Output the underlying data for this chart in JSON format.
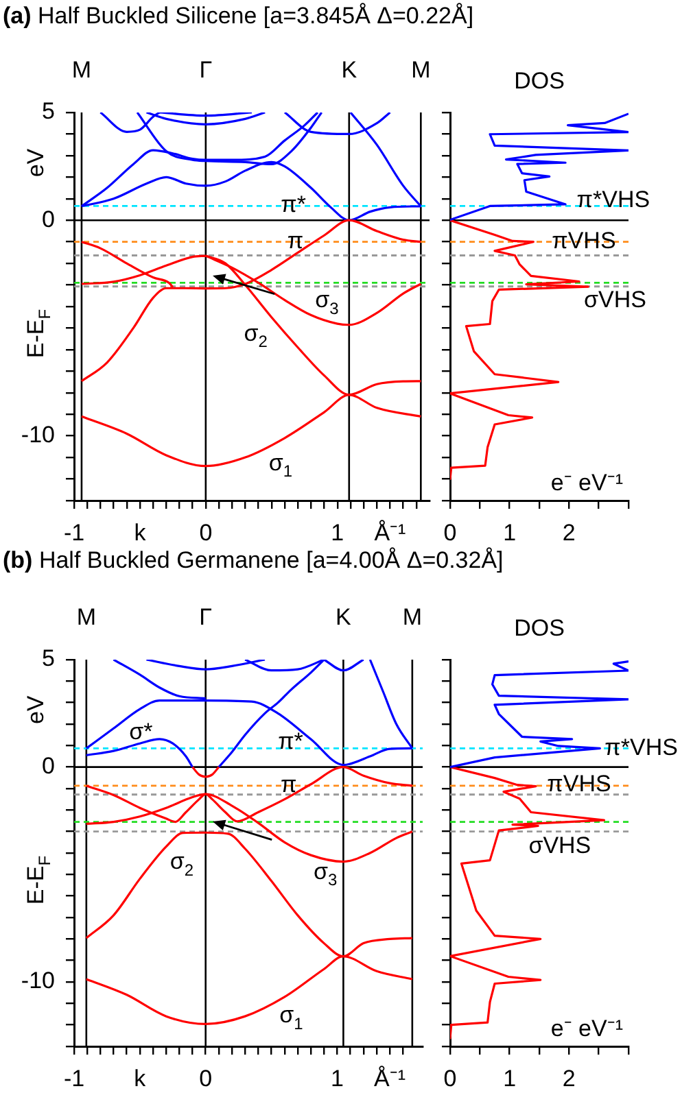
{
  "chart_data": [
    {
      "type": "line",
      "title": "(a) Half Buckled Silicene [a=3.845Å Δ=0.22Å]",
      "ylabel": "E-E$_{F}$",
      "annotations": [
        "eV",
        {
          "text": "π*",
          "x": 0.57,
          "y": 0.7
        },
        {
          "text": "π",
          "x": 0.62,
          "y": -1.0
        },
        "σ$_{3}$",
        "σ$_{2}$",
        "σ$_{1}$"
      ],
      "xlim": [
        -1,
        1.7
      ],
      "xticks": [
        -1,
        {
          "value": -0.9,
          "label": null
        },
        {
          "value": -0.8,
          "label": null
        },
        {
          "value": -0.7,
          "label": null
        },
        {
          "value": -0.6,
          "label": null
        },
        {
          "value": -0.5,
          "label": "k"
        },
        {
          "value": -0.4,
          "label": null
        },
        {
          "value": -0.3,
          "label": null
        },
        {
          "value": -0.2,
          "label": null
        },
        {
          "value": -0.1,
          "label": null
        },
        0,
        {
          "value": 0.1,
          "label": null
        },
        {
          "value": 0.2,
          "label": null
        },
        {
          "value": 0.3,
          "label": null
        },
        {
          "value": 0.4,
          "label": null
        },
        {
          "value": 0.5,
          "label": null
        },
        {
          "value": 0.6,
          "label": null
        },
        {
          "value": 0.7,
          "label": null
        },
        {
          "value": 0.8,
          "label": null
        },
        {
          "value": 0.9,
          "label": null
        },
        1,
        {
          "value": 1.1,
          "label": null
        },
        {
          "value": 1.2,
          "label": null
        },
        {
          "value": 1.3,
          "label": null
        },
        {
          "value": 1.4,
          "label": "Å⁻¹"
        },
        {
          "value": 1.5,
          "label": null
        },
        {
          "value": 1.6,
          "label": null
        }
      ],
      "ylim": [
        -13,
        5
      ],
      "yticks": [
        5,
        {
          "value": 4,
          "label": null
        },
        {
          "value": 3,
          "label": null
        },
        {
          "value": 2,
          "label": null
        },
        {
          "value": 1,
          "label": null
        },
        0,
        {
          "value": -1,
          "label": null
        },
        {
          "value": -2,
          "label": null
        },
        {
          "value": -3,
          "label": null
        },
        {
          "value": -4,
          "label": null
        },
        {
          "value": -5,
          "label": null
        },
        {
          "value": -6,
          "label": null
        },
        {
          "value": -7,
          "label": null
        },
        {
          "value": -8,
          "label": null
        },
        {
          "value": -9,
          "label": null
        },
        -10,
        {
          "value": -11,
          "label": null
        },
        {
          "value": -12,
          "label": null
        },
        {
          "value": -13,
          "label": null
        }
      ],
      "ref_lines": [
        {
          "axis": "x",
          "value": -0.943,
          "color": "#000000",
          "label": "M"
        },
        {
          "axis": "x",
          "value": 0,
          "color": "#000000",
          "label": "Γ"
        },
        {
          "axis": "x",
          "value": 1.089,
          "color": "#000000",
          "label": "K"
        },
        {
          "axis": "x",
          "value": 1.634,
          "color": "#000000",
          "label": "M"
        },
        {
          "axis": "y",
          "value": 0,
          "color": "#000000"
        },
        {
          "axis": "y",
          "value": 0.66,
          "color": "#00e5ff",
          "line_style": "dashed"
        },
        {
          "axis": "y",
          "value": -1.0,
          "color": "#ff8c1a",
          "line_style": "dashed"
        },
        {
          "axis": "y",
          "value": -1.63,
          "color": "#999999",
          "line_style": "dashed"
        },
        {
          "axis": "y",
          "value": -2.9,
          "color": "#22dd22",
          "line_style": "dashed"
        },
        {
          "axis": "y",
          "value": -3.07,
          "color": "#999999",
          "line_style": "dashed"
        }
      ],
      "series": [
        {
          "color": "#ff0000",
          "x": [
            -0.943,
            -0.6,
            -0.3,
            0,
            0.3,
            0.6,
            0.9,
            1.089,
            1.3,
            1.634
          ],
          "values": [
            -9.1,
            -9.9,
            -10.9,
            -11.4,
            -11.0,
            -10.1,
            -8.9,
            -8.1,
            -8.7,
            -9.1
          ]
        },
        {
          "color": "#ff0000",
          "x": [
            -0.943,
            -0.75,
            -0.55,
            -0.4,
            -0.3,
            -0.15,
            0,
            0.15,
            0.3,
            0.5,
            0.7,
            0.9,
            1.089,
            1.3,
            1.5,
            1.634
          ],
          "values": [
            -7.46,
            -6.6,
            -5.0,
            -3.6,
            -3.15,
            -3.15,
            -3.16,
            -3.15,
            -2.95,
            -2.3,
            -1.5,
            -0.7,
            0,
            -0.5,
            -0.9,
            -1.0
          ]
        },
        {
          "color": "#ff0000",
          "x": [
            -0.943,
            -0.8,
            -0.6,
            -0.4,
            -0.28,
            -0.25
          ],
          "values": [
            -1.0,
            -1.3,
            -2.0,
            -2.65,
            -2.9,
            -3.1
          ]
        },
        {
          "color": "#ff0000",
          "x": [
            -0.943,
            -0.7,
            -0.5,
            -0.3,
            -0.1,
            0
          ],
          "values": [
            -2.95,
            -2.85,
            -2.55,
            -2.1,
            -1.7,
            -1.65
          ]
        },
        {
          "color": "#ff0000",
          "x": [
            0,
            0.2,
            0.4,
            0.6,
            0.8,
            1.0,
            1.089,
            1.3,
            1.5,
            1.634
          ],
          "values": [
            -1.65,
            -2.2,
            -2.9,
            -3.7,
            -4.4,
            -4.8,
            -4.85,
            -4.3,
            -3.4,
            -2.95
          ]
        },
        {
          "color": "#ff0000",
          "x": [
            0,
            0.15,
            0.3,
            0.5,
            0.7,
            0.9,
            1.089,
            1.3,
            1.5,
            1.634
          ],
          "values": [
            -1.65,
            -2.0,
            -3.0,
            -4.5,
            -5.9,
            -7.2,
            -8.09,
            -7.6,
            -7.47,
            -7.46
          ]
        },
        {
          "color": "#0000ff",
          "x": [
            -0.943,
            -0.7,
            -0.45,
            -0.3,
            -0.15,
            0,
            0.15,
            0.3,
            0.5,
            0.6,
            0.8,
            0.95,
            1.089,
            1.25,
            1.4,
            1.634
          ],
          "values": [
            0.65,
            1.0,
            1.7,
            2.0,
            1.7,
            1.6,
            1.8,
            2.3,
            2.7,
            2.5,
            1.5,
            0.6,
            0,
            0.4,
            0.6,
            0.65
          ]
        },
        {
          "color": "#0000ff",
          "x": [
            -0.943,
            -0.75,
            -0.55,
            -0.4,
            -0.25,
            -0.1,
            0,
            0.2,
            0.45,
            0.6,
            0.75,
            0.85
          ],
          "values": [
            0.65,
            1.5,
            2.6,
            3.25,
            3.1,
            2.85,
            2.8,
            2.8,
            2.95,
            3.7,
            4.4,
            5.0
          ]
        },
        {
          "color": "#0000ff",
          "x": [
            -0.52,
            -0.3,
            -0.1,
            0,
            0.3,
            0.5,
            0.65,
            0.8,
            0.88
          ],
          "values": [
            5.0,
            3.2,
            2.8,
            2.75,
            2.7,
            2.6,
            3.2,
            4.3,
            5.0
          ]
        },
        {
          "color": "#0000ff",
          "x": [
            -0.45,
            -0.3,
            0,
            0.3,
            0.45
          ],
          "values": [
            5.0,
            4.7,
            4.45,
            4.7,
            5.0
          ]
        },
        {
          "color": "#0000ff",
          "x": [
            -0.35,
            0,
            0.35
          ],
          "values": [
            5.0,
            4.85,
            5.0
          ]
        },
        {
          "color": "#0000ff",
          "x": [
            -0.8,
            -0.6,
            -0.5,
            -0.4,
            -0.35
          ],
          "values": [
            5.0,
            4.1,
            4.2,
            4.8,
            5.0
          ]
        },
        {
          "color": "#0000ff",
          "x": [
            0.6,
            0.8,
            1.089,
            1.3,
            1.4
          ],
          "values": [
            5.0,
            4.1,
            4.0,
            4.5,
            5.0
          ]
        },
        {
          "color": "#0000ff",
          "x": [
            1.1,
            1.3,
            1.5,
            1.634
          ],
          "values": [
            5.0,
            3.5,
            1.6,
            0.65
          ]
        }
      ]
    },
    {
      "type": "line",
      "title": "DOS",
      "xlabel": "e⁻ eV⁻¹",
      "annotations": [
        {
          "text": "π*VHS",
          "x": 2.13,
          "y": 0.91
        },
        {
          "text": "πVHS",
          "x": 1.71,
          "y": -1.0
        },
        "σVHS"
      ],
      "xlim": [
        0,
        3
      ],
      "xticks": [
        0,
        {
          "value": 0.5,
          "label": null
        },
        1,
        {
          "value": 1.5,
          "label": null
        },
        2,
        {
          "value": 2.5,
          "label": null
        },
        {
          "value": 3,
          "label": null
        }
      ],
      "ylim": [
        -13,
        5
      ],
      "yticks": [
        {
          "value": 5,
          "label": null
        },
        {
          "value": 4,
          "label": null
        },
        {
          "value": 3,
          "label": null
        },
        {
          "value": 2,
          "label": null
        },
        {
          "value": 1,
          "label": null
        },
        {
          "value": 0,
          "label": null
        },
        {
          "value": -1,
          "label": null
        },
        {
          "value": -2,
          "label": null
        },
        {
          "value": -3,
          "label": null
        },
        {
          "value": -4,
          "label": null
        },
        {
          "value": -5,
          "label": null
        },
        {
          "value": -6,
          "label": null
        },
        {
          "value": -7,
          "label": null
        },
        {
          "value": -8,
          "label": null
        },
        {
          "value": -9,
          "label": null
        },
        {
          "value": -10,
          "label": null
        },
        {
          "value": -11,
          "label": null
        },
        {
          "value": -12,
          "label": null
        },
        {
          "value": -13,
          "label": null
        }
      ],
      "tick_labels": "x",
      "ref_lines": [
        {
          "axis": "y",
          "value": 0,
          "color": "#000000"
        },
        {
          "axis": "y",
          "value": 0.66,
          "color": "#00e5ff",
          "line_style": "dashed"
        },
        {
          "axis": "y",
          "value": -1.0,
          "color": "#ff8c1a",
          "line_style": "dashed"
        },
        {
          "axis": "y",
          "value": -1.63,
          "color": "#999999",
          "line_style": "dashed"
        },
        {
          "axis": "y",
          "value": -2.9,
          "color": "#22dd22",
          "line_style": "dashed"
        },
        {
          "axis": "y",
          "value": -3.07,
          "color": "#999999",
          "line_style": "dashed"
        }
      ],
      "series": [
        {
          "color": "#0000ff",
          "x": [
            0,
            0.67,
            1.94,
            1.28,
            1.25,
            1.67,
            1.21,
            1.13,
            1.94,
            0.94,
            1.44,
            3.0,
            0.75,
            0.67,
            3.0,
            1.98,
            2.6,
            3.0
          ],
          "values": [
            0.02,
            0.66,
            0.74,
            1.33,
            1.86,
            2.03,
            2.18,
            2.61,
            2.67,
            2.82,
            3.03,
            3.24,
            3.46,
            3.99,
            4.09,
            4.41,
            4.51,
            4.94
          ]
        },
        {
          "color": "#ff0000",
          "x": [
            0,
            0.75,
            1.05,
            1.4,
            0.75,
            1.09,
            1.17,
            1.36,
            2.17,
            1.28,
            2.32,
            0.82,
            0.71,
            0.67,
            0.27,
            0.4,
            0.75,
            1.82,
            0,
            0.98,
            1.38,
            0.75,
            0.63,
            0.59,
            0.02,
            0
          ],
          "values": [
            0,
            -0.68,
            -0.96,
            -1.0,
            -1.42,
            -1.63,
            -2.05,
            -2.58,
            -2.84,
            -2.97,
            -3.08,
            -3.22,
            -3.75,
            -4.81,
            -4.91,
            -6.08,
            -7.14,
            -7.5,
            -8.03,
            -9.04,
            -9.15,
            -9.47,
            -10.53,
            -11.38,
            -11.48,
            -12.0
          ]
        }
      ]
    },
    {
      "type": "line",
      "title": "(b) Half Buckled Germanene [a=4.00Å Δ=0.32Å]",
      "ylabel": "E-E$_{F}$",
      "annotations": [
        "eV",
        "σ*",
        {
          "text": "π*",
          "x": 0.55,
          "y": 1.15
        },
        {
          "text": "π",
          "x": 0.57,
          "y": -0.85
        },
        "σ$_{2}$",
        "σ$_{3}$",
        "σ$_{1}$"
      ],
      "xlim": [
        -1,
        1.65
      ],
      "xticks": [
        -1,
        {
          "value": -0.9,
          "label": null
        },
        {
          "value": -0.8,
          "label": null
        },
        {
          "value": -0.7,
          "label": null
        },
        {
          "value": -0.6,
          "label": null
        },
        {
          "value": -0.5,
          "label": "k"
        },
        {
          "value": -0.4,
          "label": null
        },
        {
          "value": -0.3,
          "label": null
        },
        {
          "value": -0.2,
          "label": null
        },
        {
          "value": -0.1,
          "label": null
        },
        0,
        {
          "value": 0.1,
          "label": null
        },
        {
          "value": 0.2,
          "label": null
        },
        {
          "value": 0.3,
          "label": null
        },
        {
          "value": 0.4,
          "label": null
        },
        {
          "value": 0.5,
          "label": null
        },
        {
          "value": 0.6,
          "label": null
        },
        {
          "value": 0.7,
          "label": null
        },
        {
          "value": 0.8,
          "label": null
        },
        {
          "value": 0.9,
          "label": null
        },
        1,
        {
          "value": 1.1,
          "label": null
        },
        {
          "value": 1.2,
          "label": null
        },
        {
          "value": 1.3,
          "label": null
        },
        {
          "value": 1.4,
          "label": "Å⁻¹"
        },
        {
          "value": 1.5,
          "label": null
        }
      ],
      "ylim": [
        -13,
        5
      ],
      "yticks": [
        5,
        {
          "value": 4,
          "label": null
        },
        {
          "value": 3,
          "label": null
        },
        {
          "value": 2,
          "label": null
        },
        {
          "value": 1,
          "label": null
        },
        0,
        {
          "value": -1,
          "label": null
        },
        {
          "value": -2,
          "label": null
        },
        {
          "value": -3,
          "label": null
        },
        {
          "value": -4,
          "label": null
        },
        {
          "value": -5,
          "label": null
        },
        {
          "value": -6,
          "label": null
        },
        {
          "value": -7,
          "label": null
        },
        {
          "value": -8,
          "label": null
        },
        {
          "value": -9,
          "label": null
        },
        -10,
        {
          "value": -11,
          "label": null
        },
        {
          "value": -12,
          "label": null
        },
        {
          "value": -13,
          "label": null
        }
      ],
      "ref_lines": [
        {
          "axis": "x",
          "value": -0.907,
          "color": "#000000",
          "label": "M"
        },
        {
          "axis": "x",
          "value": 0,
          "color": "#000000",
          "label": "Γ"
        },
        {
          "axis": "x",
          "value": 1.047,
          "color": "#000000",
          "label": "K"
        },
        {
          "axis": "x",
          "value": 1.571,
          "color": "#000000",
          "label": "M"
        },
        {
          "axis": "y",
          "value": 0,
          "color": "#000000"
        },
        {
          "axis": "y",
          "value": 0.87,
          "color": "#00e5ff",
          "line_style": "dashed"
        },
        {
          "axis": "y",
          "value": -0.87,
          "color": "#ff8c1a",
          "line_style": "dashed"
        },
        {
          "axis": "y",
          "value": -1.28,
          "color": "#999999",
          "line_style": "dashed"
        },
        {
          "axis": "y",
          "value": -2.55,
          "color": "#22dd22",
          "line_style": "dashed"
        },
        {
          "axis": "y",
          "value": -3.0,
          "color": "#999999",
          "line_style": "dashed"
        }
      ],
      "series": [
        {
          "color": "#ff0000",
          "x": [
            -0.907,
            -0.6,
            -0.3,
            0,
            0.3,
            0.6,
            0.9,
            1.047,
            1.3,
            1.571
          ],
          "values": [
            -9.87,
            -10.6,
            -11.6,
            -11.96,
            -11.6,
            -10.7,
            -9.4,
            -8.81,
            -9.5,
            -9.87
          ]
        },
        {
          "color": "#ff0000",
          "x": [
            -0.907,
            -0.7,
            -0.5,
            -0.3,
            -0.17,
            0,
            0.17,
            0.3,
            0.5,
            0.7,
            0.9,
            1.047,
            1.2,
            1.4,
            1.571
          ],
          "values": [
            -7.96,
            -6.9,
            -5.2,
            -3.7,
            -3.06,
            -3.05,
            -3.1,
            -3.8,
            -5.3,
            -6.9,
            -8.2,
            -8.81,
            -8.2,
            -8.0,
            -7.96
          ]
        },
        {
          "color": "#ff0000",
          "x": [
            -0.1,
            -0.05,
            0,
            0.05,
            0.1
          ],
          "values": [
            0,
            -0.35,
            -0.45,
            -0.35,
            0
          ]
        },
        {
          "color": "#ff0000",
          "x": [
            -0.907,
            -0.7,
            -0.5,
            -0.3,
            -0.23,
            -0.15,
            -0.05,
            0,
            0.05,
            0.15,
            0.24,
            0.4,
            0.6,
            0.8,
            1.047,
            1.2,
            1.4,
            1.571
          ],
          "values": [
            -0.87,
            -1.3,
            -1.9,
            -2.4,
            -2.55,
            -2.1,
            -1.5,
            -1.26,
            -1.5,
            -2.1,
            -2.53,
            -2.1,
            -1.5,
            -0.8,
            0,
            -0.4,
            -0.75,
            -0.87
          ]
        },
        {
          "color": "#ff0000",
          "x": [
            -0.907,
            -0.7,
            -0.5,
            -0.3,
            -0.1,
            0,
            0.2,
            0.4,
            0.6,
            0.8,
            1.047,
            1.25,
            1.45,
            1.571
          ],
          "values": [
            -2.64,
            -2.55,
            -2.3,
            -1.9,
            -1.4,
            -1.26,
            -1.8,
            -2.6,
            -3.5,
            -4.1,
            -4.4,
            -4.0,
            -3.3,
            -3.0
          ]
        },
        {
          "color": "#0000ff",
          "x": [
            -0.907,
            -0.7,
            -0.5,
            -0.35,
            -0.25,
            -0.15,
            -0.1
          ],
          "values": [
            0.55,
            0.75,
            1.1,
            1.3,
            1.1,
            0.5,
            0
          ]
        },
        {
          "color": "#0000ff",
          "x": [
            0.1,
            0.2,
            0.3,
            0.45,
            0.55,
            0.65,
            0.8,
            0.9
          ],
          "values": [
            0,
            0.7,
            1.5,
            2.5,
            3.0,
            3.6,
            4.4,
            5.0
          ]
        },
        {
          "color": "#0000ff",
          "x": [
            -0.907,
            -0.7,
            -0.5,
            -0.35,
            0,
            0.35,
            0.55,
            0.8,
            1.047,
            1.25,
            1.4,
            1.571
          ],
          "values": [
            0.87,
            1.8,
            2.7,
            3.1,
            3.1,
            3.05,
            2.5,
            1.3,
            0.1,
            0.5,
            0.85,
            0.87
          ]
        },
        {
          "color": "#0000ff",
          "x": [
            -0.45,
            -0.2,
            0,
            0.2,
            0.45
          ],
          "values": [
            5.0,
            4.7,
            4.55,
            4.7,
            5.0
          ]
        },
        {
          "color": "#0000ff",
          "x": [
            -0.7,
            -0.5,
            -0.35,
            -0.2,
            0
          ],
          "values": [
            5.0,
            4.3,
            3.7,
            3.3,
            3.2
          ]
        },
        {
          "color": "#0000ff",
          "x": [
            0.3,
            0.5,
            0.7,
            0.9
          ],
          "values": [
            5.0,
            4.5,
            4.55,
            5.0
          ]
        },
        {
          "color": "#0000ff",
          "x": [
            0.9,
            1.047,
            1.2
          ],
          "values": [
            5.0,
            4.5,
            5.0
          ]
        },
        {
          "color": "#0000ff",
          "x": [
            1.25,
            1.35,
            1.45,
            1.571
          ],
          "values": [
            5.0,
            3.5,
            2.0,
            0.87
          ]
        }
      ]
    },
    {
      "type": "line",
      "title": "DOS",
      "xlabel": "e⁻ eV⁻¹",
      "annotations": [
        {
          "text": "π*VHS",
          "x": 2.6,
          "y": 0.87
        },
        {
          "text": "πVHS",
          "x": 1.63,
          "y": -0.83
        },
        "σVHS"
      ],
      "xlim": [
        0,
        3
      ],
      "xticks": [
        0,
        {
          "value": 0.5,
          "label": null
        },
        1,
        {
          "value": 1.5,
          "label": null
        },
        2,
        {
          "value": 2.5,
          "label": null
        },
        {
          "value": 3,
          "label": null
        }
      ],
      "ylim": [
        -13,
        5
      ],
      "yticks": [
        {
          "value": 5,
          "label": null
        },
        {
          "value": 4,
          "label": null
        },
        {
          "value": 3,
          "label": null
        },
        {
          "value": 2,
          "label": null
        },
        {
          "value": 1,
          "label": null
        },
        {
          "value": 0,
          "label": null
        },
        {
          "value": -1,
          "label": null
        },
        {
          "value": -2,
          "label": null
        },
        {
          "value": -3,
          "label": null
        },
        {
          "value": -4,
          "label": null
        },
        {
          "value": -5,
          "label": null
        },
        {
          "value": -6,
          "label": null
        },
        {
          "value": -7,
          "label": null
        },
        {
          "value": -8,
          "label": null
        },
        {
          "value": -9,
          "label": null
        },
        {
          "value": -10,
          "label": null
        },
        {
          "value": -11,
          "label": null
        },
        {
          "value": -12,
          "label": null
        },
        {
          "value": -13,
          "label": null
        }
      ],
      "tick_labels": "x",
      "ref_lines": [
        {
          "axis": "y",
          "value": 0,
          "color": "#000000"
        },
        {
          "axis": "y",
          "value": 0.87,
          "color": "#00e5ff",
          "line_style": "dashed"
        },
        {
          "axis": "y",
          "value": -0.87,
          "color": "#ff8c1a",
          "line_style": "dashed"
        },
        {
          "axis": "y",
          "value": -1.28,
          "color": "#999999",
          "line_style": "dashed"
        },
        {
          "axis": "y",
          "value": -2.55,
          "color": "#22dd22",
          "line_style": "dashed"
        },
        {
          "axis": "y",
          "value": -3.0,
          "color": "#999999",
          "line_style": "dashed"
        }
      ],
      "series": [
        {
          "color": "#0000ff",
          "x": [
            0,
            0.75,
            2.52,
            1.82,
            1.52,
            2.05,
            1.21,
            0.82,
            0.75,
            3.0,
            0.82,
            0.71,
            0.75,
            3.0,
            2.75,
            3.0
          ],
          "values": [
            0,
            0.45,
            0.87,
            0.98,
            1.19,
            1.3,
            1.41,
            2.47,
            2.9,
            3.15,
            3.32,
            3.85,
            4.28,
            4.49,
            4.81,
            4.92
          ]
        },
        {
          "color": "#ff0000",
          "x": [
            0,
            0.75,
            1.13,
            1.44,
            0.9,
            1.17,
            1.36,
            2.59,
            1.05,
            1.48,
            0.82,
            0.67,
            0.19,
            0.44,
            0.75,
            1.52,
            0,
            0.98,
            1.52,
            0.75,
            0.67,
            0.63,
            0.02,
            0
          ],
          "values": [
            0,
            -0.51,
            -0.83,
            -0.89,
            -1.15,
            -1.47,
            -2.1,
            -2.47,
            -2.68,
            -2.74,
            -2.95,
            -4.34,
            -4.49,
            -6.68,
            -7.85,
            -8.0,
            -8.8,
            -9.76,
            -9.91,
            -10.08,
            -10.93,
            -11.89,
            -12.0,
            -12.63
          ]
        }
      ]
    }
  ]
}
